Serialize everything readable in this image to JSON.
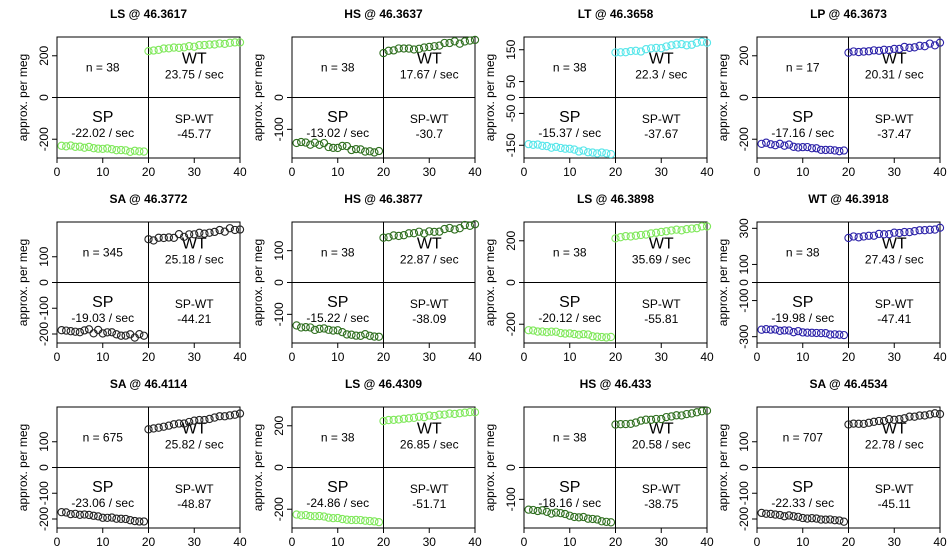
{
  "ylabel": "approx. per meg",
  "chart_data": [
    {
      "type": "scatter",
      "title": "LS @ 46.3617",
      "color": "#7fe85a",
      "n_label": "n = 38",
      "wt_label": "WT",
      "wt_rate": "23.75 / sec",
      "sp_label": "SP",
      "sp_rate": "-22.02 / sec",
      "spwt_label": "SP-WT",
      "spwt_value": "-45.77",
      "xlim": [
        0,
        40
      ],
      "ylim": [
        -290,
        290
      ],
      "xticks": [
        "0",
        "10",
        "20",
        "30",
        "40"
      ],
      "yticks": [
        {
          "v": -200,
          "t": "-200"
        },
        {
          "v": 0,
          "t": "0"
        },
        {
          "v": 200,
          "t": "200"
        }
      ],
      "sp": {
        "x0": 1,
        "x1": 19,
        "start": -230,
        "end": -262
      },
      "wt": {
        "x0": 20,
        "x1": 40,
        "start": 225,
        "end": 268
      },
      "noise": 4
    },
    {
      "type": "scatter",
      "title": "HS @ 46.3637",
      "color": "#2e6e1e",
      "n_label": "n = 38",
      "wt_label": "WT",
      "wt_rate": "17.67 / sec",
      "sp_label": "SP",
      "sp_rate": "-13.02 / sec",
      "spwt_label": "SP-WT",
      "spwt_value": "-30.7",
      "xlim": [
        0,
        40
      ],
      "ylim": [
        -190,
        190
      ],
      "xticks": [
        "0",
        "10",
        "20",
        "30",
        "40"
      ],
      "yticks": [
        {
          "v": -100,
          "t": "-100"
        },
        {
          "v": 0,
          "t": "0"
        }
      ],
      "sp": {
        "x0": 1,
        "x1": 19,
        "start": -137,
        "end": -172
      },
      "wt": {
        "x0": 20,
        "x1": 40,
        "start": 145,
        "end": 180
      },
      "noise": 6
    },
    {
      "type": "scatter",
      "title": "LT @ 46.3658",
      "color": "#55e6ea",
      "n_label": "n = 38",
      "wt_label": "WT",
      "wt_rate": "22.3 / sec",
      "sp_label": "SP",
      "sp_rate": "-15.37 / sec",
      "spwt_label": "SP-WT",
      "spwt_value": "-37.67",
      "xlim": [
        0,
        40
      ],
      "ylim": [
        -190,
        190
      ],
      "xticks": [
        "0",
        "10",
        "20",
        "30",
        "40"
      ],
      "yticks": [
        {
          "v": -150,
          "t": "-150"
        },
        {
          "v": -50,
          "t": "-50"
        },
        {
          "v": 0,
          "t": "0"
        },
        {
          "v": 50,
          "t": "50"
        },
        {
          "v": 150,
          "t": "150"
        }
      ],
      "sp": {
        "x0": 1,
        "x1": 19,
        "start": -148,
        "end": -180
      },
      "wt": {
        "x0": 20,
        "x1": 40,
        "start": 138,
        "end": 175
      },
      "noise": 4
    },
    {
      "type": "scatter",
      "title": "LP @ 46.3673",
      "color": "#2a20a8",
      "n_label": "n = 17",
      "wt_label": "WT",
      "wt_rate": "20.31 / sec",
      "sp_label": "SP",
      "sp_rate": "-17.16 / sec",
      "spwt_label": "SP-WT",
      "spwt_value": "-37.47",
      "xlim": [
        0,
        40
      ],
      "ylim": [
        -290,
        290
      ],
      "xticks": [
        "0",
        "10",
        "20",
        "30",
        "40"
      ],
      "yticks": [
        {
          "v": -200,
          "t": "-200"
        },
        {
          "v": 0,
          "t": "0"
        },
        {
          "v": 200,
          "t": "200"
        }
      ],
      "sp": {
        "x0": 1,
        "x1": 19,
        "start": -220,
        "end": -258
      },
      "wt": {
        "x0": 20,
        "x1": 40,
        "start": 210,
        "end": 260
      },
      "noise": 8
    },
    {
      "type": "scatter",
      "title": "SA @ 46.3772",
      "color": "#222222",
      "n_label": "n = 345",
      "wt_label": "WT",
      "wt_rate": "25.18 / sec",
      "sp_label": "SP",
      "sp_rate": "-19.03 / sec",
      "spwt_label": "SP-WT",
      "spwt_value": "-44.21",
      "xlim": [
        0,
        40
      ],
      "ylim": [
        -235,
        235
      ],
      "xticks": [
        "0",
        "10",
        "20",
        "30",
        "40"
      ],
      "yticks": [
        {
          "v": -200,
          "t": "-200"
        },
        {
          "v": -100,
          "t": "-100"
        },
        {
          "v": 0,
          "t": "0"
        },
        {
          "v": 100,
          "t": "100"
        }
      ],
      "sp": {
        "x0": 1,
        "x1": 19,
        "start": -178,
        "end": -210
      },
      "wt": {
        "x0": 20,
        "x1": 40,
        "start": 165,
        "end": 210
      },
      "noise": 8
    },
    {
      "type": "scatter",
      "title": "HS @ 46.3877",
      "color": "#2e6e1e",
      "n_label": "n = 38",
      "wt_label": "WT",
      "wt_rate": "22.87 / sec",
      "sp_label": "SP",
      "sp_rate": "-15.22 / sec",
      "spwt_label": "SP-WT",
      "spwt_value": "-38.09",
      "xlim": [
        0,
        40
      ],
      "ylim": [
        -190,
        190
      ],
      "xticks": [
        "0",
        "10",
        "20",
        "30",
        "40"
      ],
      "yticks": [
        {
          "v": -100,
          "t": "-100"
        },
        {
          "v": 0,
          "t": "0"
        },
        {
          "v": 100,
          "t": "100"
        }
      ],
      "sp": {
        "x0": 1,
        "x1": 19,
        "start": -137,
        "end": -172
      },
      "wt": {
        "x0": 20,
        "x1": 40,
        "start": 140,
        "end": 180
      },
      "noise": 5
    },
    {
      "type": "scatter",
      "title": "LS @ 46.3898",
      "color": "#7fe85a",
      "n_label": "n = 38",
      "wt_label": "WT",
      "wt_rate": "35.69 / sec",
      "sp_label": "SP",
      "sp_rate": "-20.12 / sec",
      "spwt_label": "SP-WT",
      "spwt_value": "-55.81",
      "xlim": [
        0,
        40
      ],
      "ylim": [
        -290,
        290
      ],
      "xticks": [
        "0",
        "10",
        "20",
        "30",
        "40"
      ],
      "yticks": [
        {
          "v": -200,
          "t": "-200"
        },
        {
          "v": 0,
          "t": "0"
        },
        {
          "v": 200,
          "t": "200"
        }
      ],
      "sp": {
        "x0": 1,
        "x1": 19,
        "start": -228,
        "end": -262
      },
      "wt": {
        "x0": 20,
        "x1": 40,
        "start": 212,
        "end": 270
      },
      "noise": 4
    },
    {
      "type": "scatter",
      "title": "WT @ 46.3918",
      "color": "#2a20a8",
      "n_label": "n = 38",
      "wt_label": "WT",
      "wt_rate": "27.43 / sec",
      "sp_label": "SP",
      "sp_rate": "-19.98 / sec",
      "spwt_label": "SP-WT",
      "spwt_value": "-47.41",
      "xlim": [
        0,
        40
      ],
      "ylim": [
        -335,
        335
      ],
      "xticks": [
        "0",
        "10",
        "20",
        "30",
        "40"
      ],
      "yticks": [
        {
          "v": -300,
          "t": "-300"
        },
        {
          "v": -100,
          "t": "-100"
        },
        {
          "v": 0,
          "t": "0"
        },
        {
          "v": 100,
          "t": "100"
        },
        {
          "v": 300,
          "t": "300"
        }
      ],
      "sp": {
        "x0": 1,
        "x1": 19,
        "start": -258,
        "end": -292
      },
      "wt": {
        "x0": 20,
        "x1": 40,
        "start": 248,
        "end": 300
      },
      "noise": 4
    },
    {
      "type": "scatter",
      "title": "SA @ 46.4114",
      "color": "#222222",
      "n_label": "n = 675",
      "wt_label": "WT",
      "wt_rate": "25.82 / sec",
      "sp_label": "SP",
      "sp_rate": "-23.06 / sec",
      "spwt_label": "SP-WT",
      "spwt_value": "-48.87",
      "xlim": [
        0,
        40
      ],
      "ylim": [
        -235,
        235
      ],
      "xticks": [
        "0",
        "10",
        "20",
        "30",
        "40"
      ],
      "yticks": [
        {
          "v": -200,
          "t": "-200"
        },
        {
          "v": -100,
          "t": "-100"
        },
        {
          "v": 0,
          "t": "0"
        },
        {
          "v": 100,
          "t": "100"
        }
      ],
      "sp": {
        "x0": 1,
        "x1": 19,
        "start": -175,
        "end": -210
      },
      "wt": {
        "x0": 20,
        "x1": 40,
        "start": 150,
        "end": 210
      },
      "noise": 3
    },
    {
      "type": "scatter",
      "title": "LS @ 46.4309",
      "color": "#7fe85a",
      "n_label": "n = 38",
      "wt_label": "WT",
      "wt_rate": "26.85 / sec",
      "sp_label": "SP",
      "sp_rate": "-24.86 / sec",
      "spwt_label": "SP-WT",
      "spwt_value": "-51.71",
      "xlim": [
        0,
        40
      ],
      "ylim": [
        -290,
        290
      ],
      "xticks": [
        "0",
        "10",
        "20",
        "30",
        "40"
      ],
      "yticks": [
        {
          "v": -200,
          "t": "-200"
        },
        {
          "v": 0,
          "t": "0"
        },
        {
          "v": 200,
          "t": "200"
        }
      ],
      "sp": {
        "x0": 1,
        "x1": 19,
        "start": -225,
        "end": -262
      },
      "wt": {
        "x0": 20,
        "x1": 40,
        "start": 225,
        "end": 268
      },
      "noise": 3
    },
    {
      "type": "scatter",
      "title": "HS @ 46.433",
      "color": "#2e6e1e",
      "n_label": "n = 38",
      "wt_label": "WT",
      "wt_rate": "20.58 / sec",
      "sp_label": "SP",
      "sp_rate": "-18.16 / sec",
      "spwt_label": "SP-WT",
      "spwt_value": "-38.75",
      "xlim": [
        0,
        40
      ],
      "ylim": [
        -190,
        190
      ],
      "xticks": [
        "0",
        "10",
        "20",
        "30",
        "40"
      ],
      "yticks": [
        {
          "v": -100,
          "t": "-100"
        },
        {
          "v": 0,
          "t": "0"
        }
      ],
      "sp": {
        "x0": 1,
        "x1": 19,
        "start": -130,
        "end": -172
      },
      "wt": {
        "x0": 20,
        "x1": 40,
        "start": 132,
        "end": 178
      },
      "noise": 3
    },
    {
      "type": "scatter",
      "title": "SA @ 46.4534",
      "color": "#222222",
      "n_label": "n = 707",
      "wt_label": "WT",
      "wt_rate": "22.78 / sec",
      "sp_label": "SP",
      "sp_rate": "-22.33 / sec",
      "spwt_label": "SP-WT",
      "spwt_value": "-45.11",
      "xlim": [
        0,
        40
      ],
      "ylim": [
        -235,
        235
      ],
      "xticks": [
        "0",
        "10",
        "20",
        "30",
        "40"
      ],
      "yticks": [
        {
          "v": -200,
          "t": "-200"
        },
        {
          "v": -100,
          "t": "-100"
        },
        {
          "v": 0,
          "t": "0"
        },
        {
          "v": 100,
          "t": "100"
        }
      ],
      "sp": {
        "x0": 1,
        "x1": 19,
        "start": -178,
        "end": -210
      },
      "wt": {
        "x0": 20,
        "x1": 40,
        "start": 165,
        "end": 210
      },
      "noise": 3
    }
  ]
}
